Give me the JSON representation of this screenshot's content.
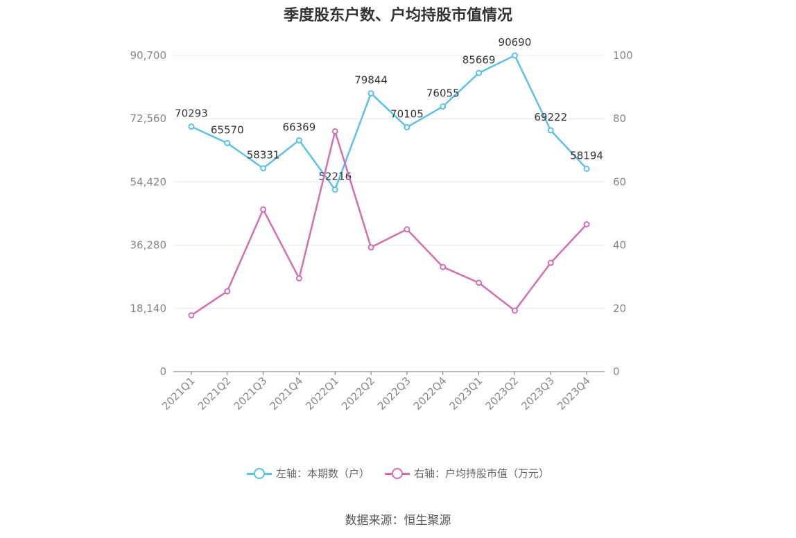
{
  "chart_data": {
    "type": "line",
    "title": "季度股东户数、户均持股市值情况",
    "categories": [
      "2021Q1",
      "2021Q2",
      "2021Q3",
      "2021Q4",
      "2022Q1",
      "2022Q2",
      "2022Q3",
      "2022Q4",
      "2023Q1",
      "2023Q2",
      "2023Q3",
      "2023Q4"
    ],
    "left_axis": {
      "ylim": [
        0,
        90700
      ],
      "ticks": [
        0,
        18140,
        36280,
        54420,
        72560,
        90700
      ],
      "tick_labels": [
        "0",
        "18,140",
        "36,280",
        "54,420",
        "72,560",
        "90,700"
      ]
    },
    "right_axis": {
      "ylim": [
        0,
        100
      ],
      "ticks": [
        0,
        20,
        40,
        60,
        80,
        100
      ],
      "tick_labels": [
        "0",
        "20",
        "40",
        "60",
        "80",
        "100"
      ]
    },
    "series": [
      {
        "name": "左轴：本期数（户）",
        "axis": "left",
        "color": "#5bc0eb",
        "values": [
          70293,
          65570,
          58331,
          66369,
          52216,
          79844,
          70105,
          76055,
          85669,
          90690,
          69222,
          58194
        ],
        "labels": [
          "70293",
          "65570",
          "58331",
          "66369",
          "52216",
          "79844",
          "70105",
          "76055",
          "85669",
          "90690",
          "69222",
          "58194"
        ]
      },
      {
        "name": "右轴：户均持股市值（万元）",
        "axis": "right",
        "color": "#d36fb0",
        "values": [
          17.8,
          25.4,
          51.3,
          29.5,
          76.0,
          39.3,
          45.0,
          33.1,
          28.1,
          19.3,
          34.4,
          46.6
        ]
      }
    ],
    "grid": true,
    "legend_position": "bottom"
  },
  "source": "数据来源：恒生聚源"
}
